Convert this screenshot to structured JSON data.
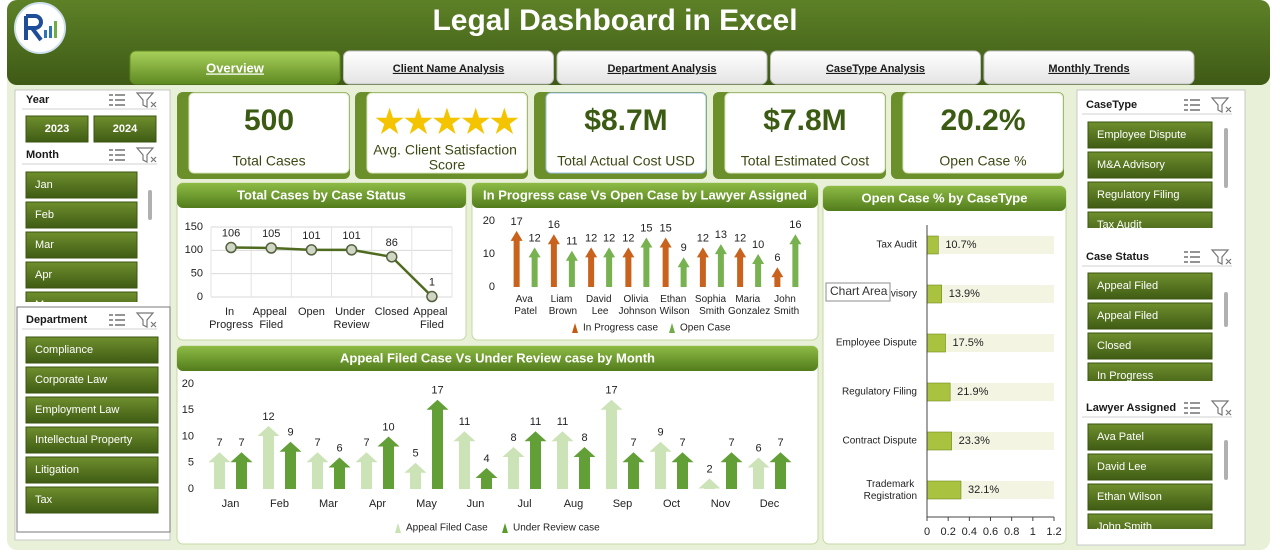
{
  "header": {
    "title": "Legal Dashboard in Excel"
  },
  "tabs": [
    "Overview",
    "Client Name Analysis",
    "Department Analysis",
    "CaseType Analysis",
    "Monthly Trends"
  ],
  "kpis": [
    {
      "value": "500",
      "label": "Total Cases"
    },
    {
      "value": "★★★★★",
      "label": "Avg. Client Satisfaction Score"
    },
    {
      "value": "$8.7M",
      "label": "Total Actual Cost USD"
    },
    {
      "value": "$7.8M",
      "label": "Total Estimated Cost"
    },
    {
      "value": "20.2%",
      "label": "Open Case %"
    }
  ],
  "slicers": [
    {
      "title": "Year",
      "items": [
        "2023",
        "2024"
      ]
    },
    {
      "title": "Month",
      "items": [
        "Jan",
        "Feb",
        "Mar",
        "Apr",
        "May"
      ]
    },
    {
      "title": "Department",
      "items": [
        "Compliance",
        "Corporate Law",
        "Employment Law",
        "Intellectual Property",
        "Litigation",
        "Tax"
      ]
    },
    {
      "title": "CaseType",
      "items": [
        "Employee Dispute",
        "M&A Advisory",
        "Regulatory Filing",
        "Tax Audit"
      ]
    },
    {
      "title": "Case Status",
      "items": [
        "Appeal Filed",
        "Appeal Filed",
        "Closed",
        "In Progress"
      ]
    },
    {
      "title": "Lawyer Assigned",
      "items": [
        "Ava Patel",
        "David Lee",
        "Ethan Wilson",
        "John Smith"
      ]
    }
  ],
  "tooltip": "Chart Area",
  "chart_data": [
    {
      "type": "line",
      "title": "Total Cases by Case Status",
      "categories": [
        "In Progress",
        "Appeal Filed",
        "Open",
        "Under Review",
        "Closed",
        "Appeal Filed"
      ],
      "values": [
        106,
        105,
        101,
        101,
        86,
        1
      ],
      "color": "#4f6b1f",
      "ylim": [
        0,
        150
      ],
      "yticks": [
        0,
        50,
        100,
        150
      ],
      "grid": true
    },
    {
      "type": "bar",
      "title": "In Progress case Vs Open Case by Lawyer Assigned",
      "categories": [
        "Ava Patel",
        "Liam Brown",
        "David Lee",
        "Olivia Johnson",
        "Ethan Wilson",
        "Sophia Smith",
        "Maria Gonzalez",
        "John Smith"
      ],
      "series": [
        {
          "name": "In Progress case",
          "color": "#c55a11",
          "values": [
            17,
            16,
            12,
            12,
            15,
            12,
            12,
            6
          ]
        },
        {
          "name": "Open Case",
          "color": "#70ad47",
          "values": [
            12,
            11,
            12,
            15,
            9,
            13,
            10,
            16
          ]
        }
      ],
      "ylim": [
        0,
        20
      ],
      "yticks": [
        0,
        10,
        20
      ],
      "grid": false
    },
    {
      "type": "bar",
      "title": "Appeal Filed Case Vs Under Review case by Month",
      "categories": [
        "Jan",
        "Feb",
        "Mar",
        "Apr",
        "May",
        "Jun",
        "Jul",
        "Aug",
        "Sep",
        "Oct",
        "Nov",
        "Dec"
      ],
      "series": [
        {
          "name": "Appeal Filed Case",
          "color": "#c9e2b3",
          "values": [
            7,
            12,
            7,
            7,
            5,
            11,
            8,
            11,
            17,
            9,
            2,
            6
          ]
        },
        {
          "name": "Under Review case",
          "color": "#5b9a2c",
          "values": [
            7,
            9,
            6,
            10,
            17,
            4,
            11,
            8,
            7,
            7,
            7,
            7
          ]
        }
      ],
      "ylim": [
        0,
        20
      ],
      "yticks": [
        0,
        5,
        10,
        15,
        20
      ],
      "grid": false
    },
    {
      "type": "hbar",
      "title": "Open Case % by CaseType",
      "categories": [
        "Tax Audit",
        "M&A Advisory",
        "Employee Dispute",
        "Regulatory Filing",
        "Contract Dispute",
        "Trademark Registration"
      ],
      "values": [
        0.107,
        0.139,
        0.175,
        0.219,
        0.233,
        0.321
      ],
      "value_labels": [
        "10.7%",
        "13.9%",
        "17.5%",
        "21.9%",
        "23.3%",
        "32.1%"
      ],
      "color": "#a9c23f",
      "xlim": [
        0,
        1.2
      ],
      "xticks": [
        0,
        0.2,
        0.4,
        0.6,
        0.8,
        1,
        1.2
      ],
      "grid": false
    }
  ]
}
